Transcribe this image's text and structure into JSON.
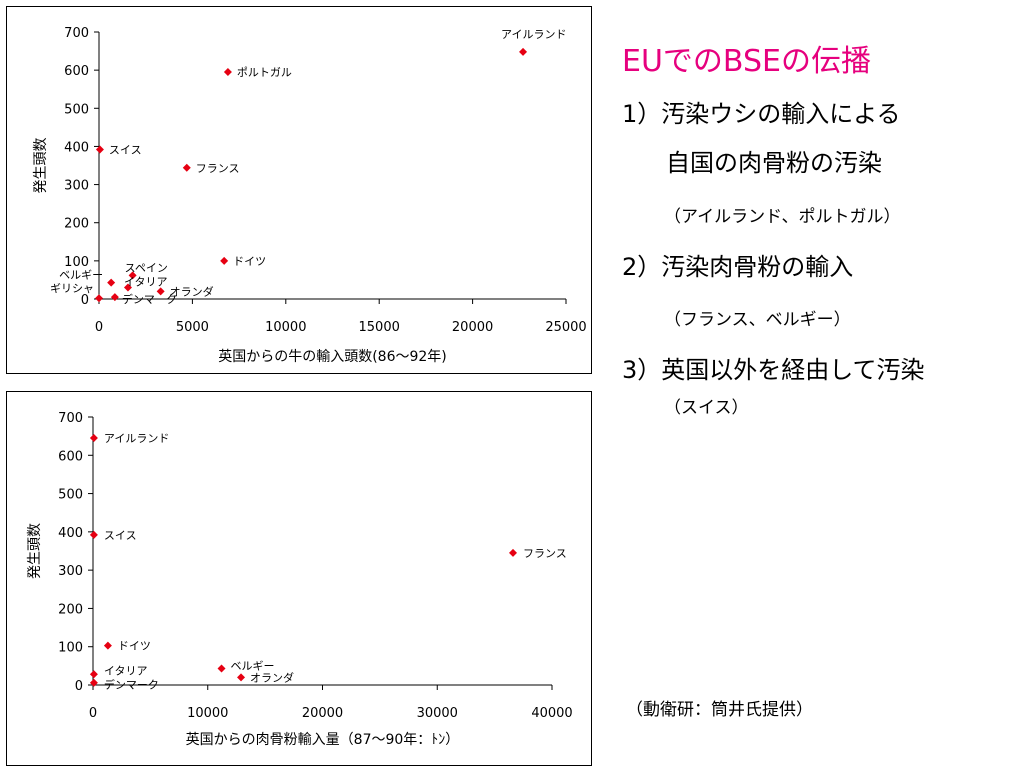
{
  "slide": {
    "title": "EUでのBSEの伝播",
    "item1_line1": "1）汚染ウシの輸入による",
    "item1_line2": "自国の肉骨粉の汚染",
    "item1_sub": "（アイルランド、ポルトガル）",
    "item2": "2）汚染肉骨粉の輸入",
    "item2_sub": "（フランス、ベルギー）",
    "item3": "3）英国以外を経由して汚染",
    "item3_sub": "（スイス）",
    "credit": "（動衛研：筒井氏提供）"
  },
  "colors": {
    "title": "#e6007e",
    "marker": "#e60012"
  },
  "chart_data": [
    {
      "type": "scatter",
      "title": "",
      "xlabel": "英国からの牛の輸入頭数(86～92年)",
      "ylabel": "発生頭数",
      "xlim": [
        0,
        25000
      ],
      "ylim": [
        0,
        700
      ],
      "xticks": [
        0,
        5000,
        10000,
        15000,
        20000,
        25000
      ],
      "yticks": [
        0,
        100,
        200,
        300,
        400,
        500,
        600,
        700
      ],
      "points": [
        {
          "label": "アイルランド",
          "x": 22700,
          "y": 648
        },
        {
          "label": "ポルトガル",
          "x": 6900,
          "y": 595
        },
        {
          "label": "スイス",
          "x": 50,
          "y": 392
        },
        {
          "label": "フランス",
          "x": 4700,
          "y": 344
        },
        {
          "label": "ドイツ",
          "x": 6700,
          "y": 100
        },
        {
          "label": "スペイン",
          "x": 1800,
          "y": 62
        },
        {
          "label": "ベルギー",
          "x": 650,
          "y": 43
        },
        {
          "label": "イタリア",
          "x": 1550,
          "y": 30
        },
        {
          "label": "オランダ",
          "x": 3300,
          "y": 20
        },
        {
          "label": "ギリシャ",
          "x": 0,
          "y": 2
        },
        {
          "label": "デンマーク",
          "x": 850,
          "y": 5
        }
      ]
    },
    {
      "type": "scatter",
      "title": "",
      "xlabel": "英国からの肉骨粉輸入量（87～90年：ﾄﾝ）",
      "ylabel": "発生頭数",
      "xlim": [
        0,
        40000
      ],
      "ylim": [
        0,
        700
      ],
      "xticks": [
        0,
        10000,
        20000,
        30000,
        40000
      ],
      "yticks": [
        0,
        100,
        200,
        300,
        400,
        500,
        600,
        700
      ],
      "points": [
        {
          "label": "アイルランド",
          "x": 80,
          "y": 645
        },
        {
          "label": "スイス",
          "x": 80,
          "y": 392
        },
        {
          "label": "フランス",
          "x": 36600,
          "y": 345
        },
        {
          "label": "ドイツ",
          "x": 1300,
          "y": 103
        },
        {
          "label": "ベルギー",
          "x": 11200,
          "y": 43
        },
        {
          "label": "オランダ",
          "x": 12900,
          "y": 20
        },
        {
          "label": "イタリア",
          "x": 80,
          "y": 28
        },
        {
          "label": "デンマーク",
          "x": 80,
          "y": 6
        }
      ]
    }
  ]
}
